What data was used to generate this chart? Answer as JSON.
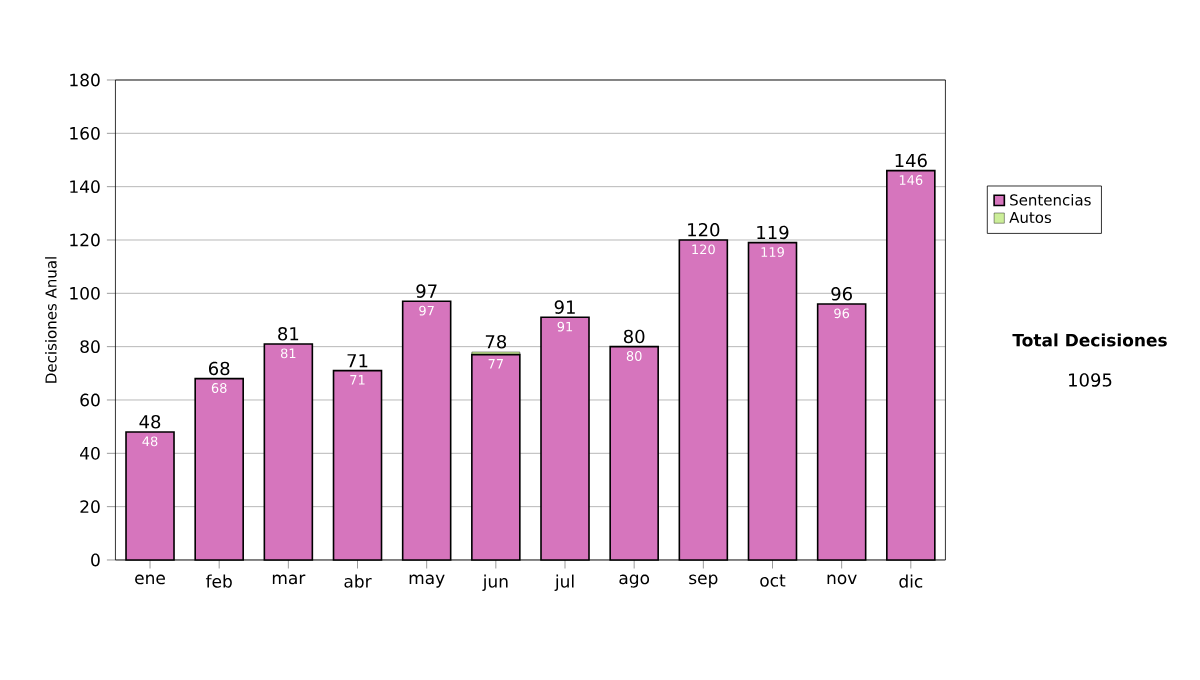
{
  "chart_data": {
    "type": "bar",
    "stacked": true,
    "ylabel": "Decisiones Anual",
    "categories": [
      "ene",
      "feb",
      "mar",
      "abr",
      "may",
      "jun",
      "jul",
      "ago",
      "sep",
      "oct",
      "nov",
      "dic"
    ],
    "series": [
      {
        "name": "Sentencias",
        "color": "#d675bd",
        "values": [
          48,
          68,
          81,
          71,
          97,
          77,
          91,
          80,
          120,
          119,
          96,
          146
        ],
        "value_labels": [
          "48",
          "68",
          "81",
          "71",
          "97",
          "77",
          "91",
          "80",
          "120",
          "119",
          "96",
          "146"
        ]
      },
      {
        "name": "Autos",
        "color": "#ccee99",
        "values": [
          0,
          0,
          0,
          0,
          0,
          1,
          0,
          0,
          0,
          0,
          0,
          0
        ]
      }
    ],
    "totals": [
      "48",
      "68",
      "81",
      "71",
      "97",
      "78",
      "91",
      "80",
      "120",
      "119",
      "96",
      "146"
    ],
    "ylim": [
      0,
      180
    ],
    "yticks": [
      0,
      20,
      40,
      60,
      80,
      100,
      120,
      140,
      160,
      180
    ],
    "grid": "y",
    "legend": "right",
    "annotations": [
      "Total Decisiones",
      "1095"
    ]
  }
}
